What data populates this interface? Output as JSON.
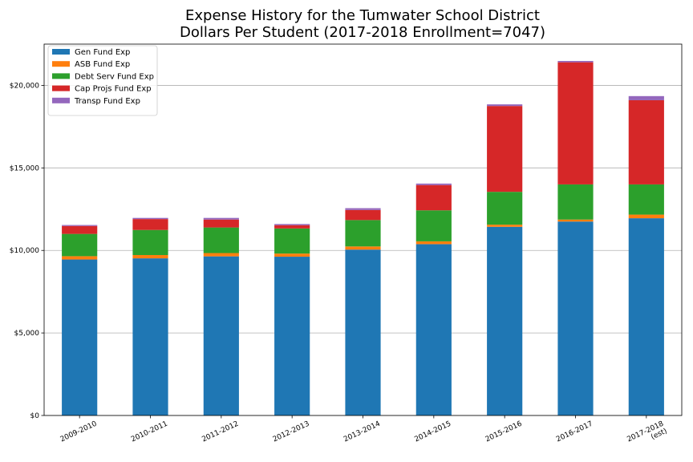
{
  "chart_data": {
    "type": "bar",
    "stacked": true,
    "title_lines": [
      "Expense History for the Tumwater School District",
      "Dollars Per Student (2017-2018 Enrollment=7047)"
    ],
    "categories": [
      [
        "2009-2010"
      ],
      [
        "2010-2011"
      ],
      [
        "2011-2012"
      ],
      [
        "2012-2013"
      ],
      [
        "2013-2014"
      ],
      [
        "2014-2015"
      ],
      [
        "2015-2016"
      ],
      [
        "2016-2017"
      ],
      [
        "2017-2018",
        "(est)"
      ]
    ],
    "y_ticks": [
      {
        "value": 0,
        "label": "$0"
      },
      {
        "value": 5000,
        "label": "$5,000"
      },
      {
        "value": 10000,
        "label": "$10,000"
      },
      {
        "value": 15000,
        "label": "$15,000"
      },
      {
        "value": 20000,
        "label": "$20,000"
      }
    ],
    "ylim": [
      0,
      22500
    ],
    "grid": "horizontal",
    "legend_position": "upper-left",
    "series": [
      {
        "name": "Gen Fund Exp",
        "color": "#1f77b4",
        "values": [
          9450,
          9520,
          9640,
          9620,
          10050,
          10380,
          11430,
          11750,
          11950
        ]
      },
      {
        "name": "ASB Fund Exp",
        "color": "#ff7f0e",
        "values": [
          200,
          200,
          200,
          190,
          190,
          170,
          130,
          120,
          220
        ]
      },
      {
        "name": "Debt Serv Fund Exp",
        "color": "#2ca02c",
        "values": [
          1350,
          1520,
          1550,
          1520,
          1600,
          1880,
          1990,
          2130,
          1830
        ]
      },
      {
        "name": "Cap Projs Fund Exp",
        "color": "#d62728",
        "values": [
          480,
          660,
          480,
          200,
          610,
          1530,
          5200,
          7400,
          5100
        ]
      },
      {
        "name": "Transp Fund Exp",
        "color": "#9467bd",
        "values": [
          60,
          70,
          100,
          70,
          110,
          90,
          100,
          80,
          250
        ]
      }
    ]
  }
}
